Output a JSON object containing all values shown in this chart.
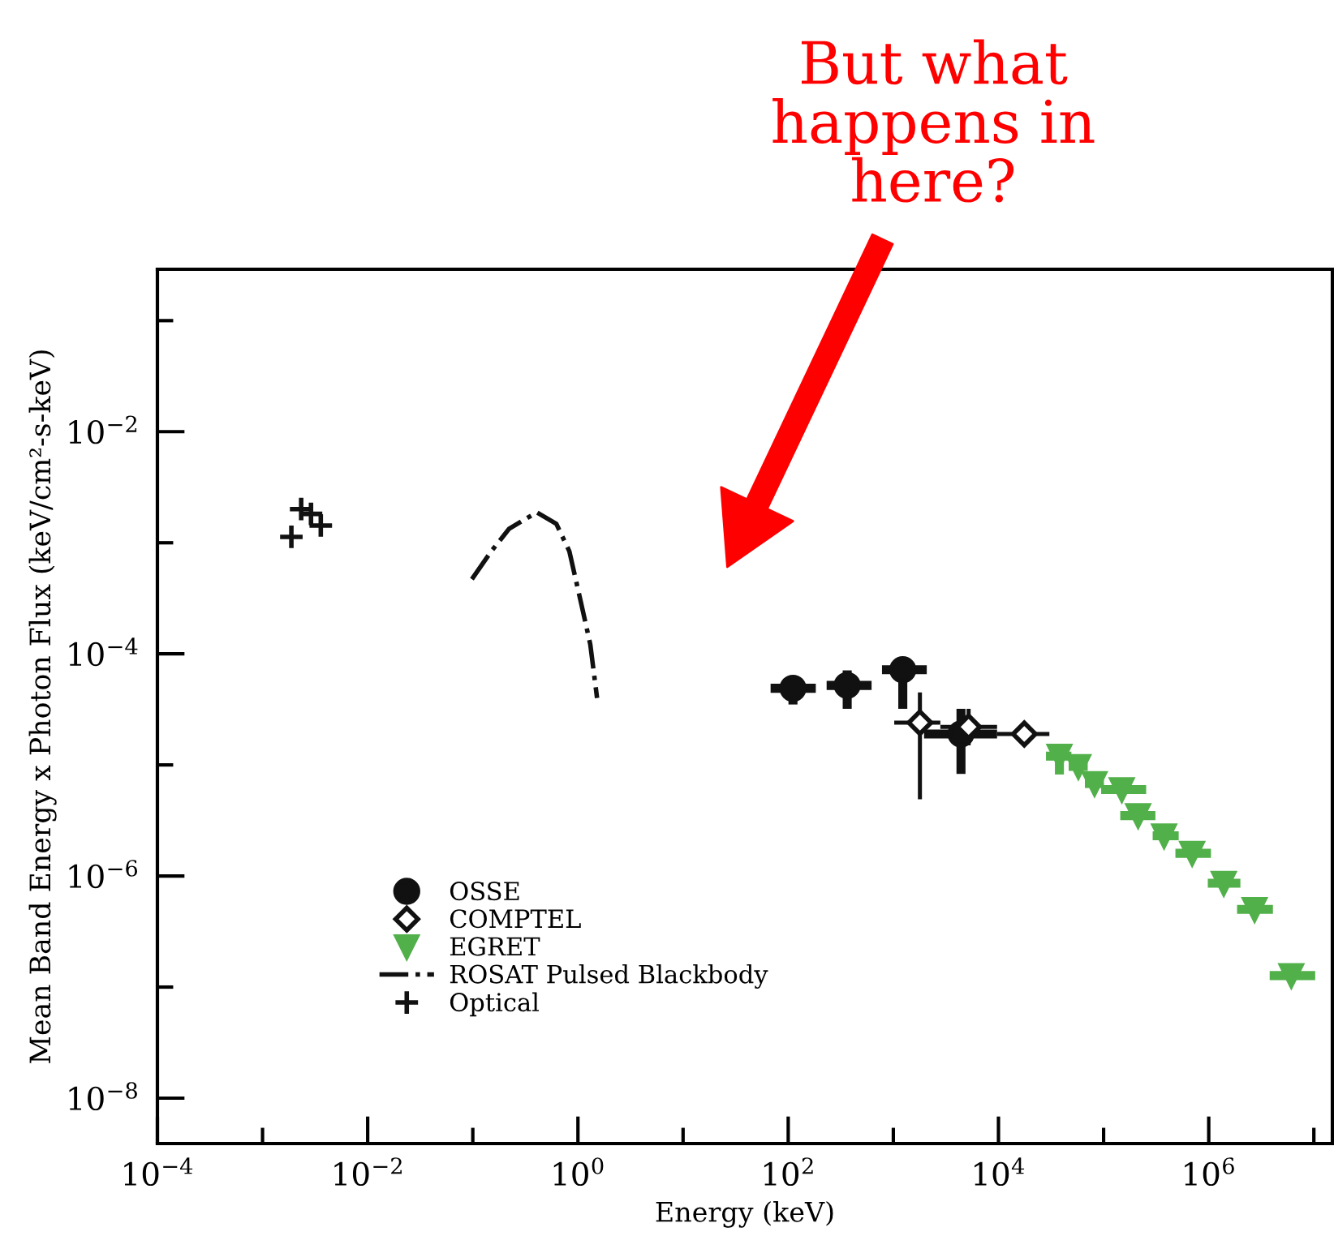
{
  "chart_data": {
    "type": "scatter",
    "xlabel": "Energy (keV)",
    "ylabel": "Mean Band Energy x Photon Flux (keV/cm²-s-keV)",
    "log": "xy",
    "grid": false,
    "legend": "bottom left",
    "xlim": [
      0.0001,
      15000000
    ],
    "ylim": [
      3.9e-09,
      0.29
    ],
    "xticks": [
      {
        "value": 0.0001,
        "label": "10$^{−4}$"
      },
      {
        "value": 0.001,
        "label": null
      },
      {
        "value": 0.01,
        "label": "10$^{−2}$"
      },
      {
        "value": 0.1,
        "label": null
      },
      {
        "value": 1,
        "label": "10$^{0}$"
      },
      {
        "value": 10,
        "label": null
      },
      {
        "value": 100,
        "label": "10$^{2}$"
      },
      {
        "value": 1000,
        "label": null
      },
      {
        "value": 10000,
        "label": "10$^{4}$"
      },
      {
        "value": 100000,
        "label": null
      },
      {
        "value": 1000000,
        "label": "10$^{6}$"
      },
      {
        "value": 10000000,
        "label": null
      }
    ],
    "yticks": [
      {
        "value": 1e-08,
        "label": "10$^{−8}$"
      },
      {
        "value": 1e-07,
        "label": null
      },
      {
        "value": 1e-06,
        "label": "10$^{−6}$"
      },
      {
        "value": 1e-05,
        "label": null
      },
      {
        "value": 0.0001,
        "label": "10$^{−4}$"
      },
      {
        "value": 0.001,
        "label": null
      },
      {
        "value": 0.01,
        "label": "10$^{−2}$"
      },
      {
        "value": 0.1,
        "label": null
      }
    ],
    "annotations": [
      "But what\nhappens in\nhere?"
    ],
    "series": [
      {
        "name": "OSSE",
        "marker": "circle",
        "color": "#111111",
        "x": [
          111,
          364,
          1230,
          4400
        ],
        "values": [
          4.9e-05,
          5.2e-05,
          7.2e-05,
          1.9e-05
        ],
        "errors": [
          [
            3.5e-05,
            6.2e-05
          ],
          [
            3.2e-05,
            7.1e-05
          ],
          [
            3.2e-05,
            7.2e-05
          ],
          [
            8.3e-06,
            3.2e-05
          ]
        ],
        "xerrors": [
          [
            68,
            183
          ],
          [
            232,
            621
          ],
          [
            780,
            2080
          ],
          [
            1960,
            9700
          ]
        ]
      },
      {
        "name": "COMPTEL",
        "marker": "diamond",
        "color": "#111111",
        "x": [
          1790,
          5200,
          17600
        ],
        "values": [
          2.4e-05,
          2.2e-05,
          1.9e-05
        ],
        "errors": [
          [
            4.9e-06,
            4.5e-05
          ],
          [
            1.5e-05,
            3.2e-05
          ],
          [
            1.6e-05,
            2.3e-05
          ]
        ],
        "xerrors": [
          [
            1020,
            2800
          ],
          [
            2800,
            9700
          ],
          [
            9700,
            30500
          ]
        ]
      },
      {
        "name": "EGRET",
        "marker": "triangle",
        "color": "#52b04a",
        "x": [
          38000,
          57500,
          82000,
          149000,
          213000,
          376000,
          695000,
          1390000,
          2730000,
          6100000
        ],
        "values": [
          1.2e-05,
          9.7e-06,
          6.8e-06,
          6e-06,
          3.5e-06,
          2.3e-06,
          1.6e-06,
          8.6e-07,
          5e-07,
          1.27e-07
        ],
        "errors": [
          [
            8.2e-06,
            1.43e-05
          ],
          null,
          null,
          null,
          null,
          null,
          null,
          null,
          null,
          null
        ],
        "xerrors": [
          [
            28300,
            49400
          ],
          [
            46500,
            70600
          ],
          [
            66400,
            100700
          ],
          [
            94800,
            254000
          ],
          [
            144000,
            311000
          ],
          [
            293000,
            518000
          ],
          [
            482000,
            1050000
          ],
          [
            980000,
            2000000
          ],
          [
            1860000,
            4080000
          ],
          [
            3800000,
            10300000
          ]
        ]
      },
      {
        "name": "ROSAT Pulsed Blackbody",
        "type": "line",
        "line_style": "dashdot",
        "color": "#111111",
        "x": [
          0.098,
          0.15,
          0.222,
          0.406,
          0.623,
          0.828,
          1.06,
          1.31,
          1.52
        ],
        "values": [
          0.00047,
          0.00084,
          0.00134,
          0.00188,
          0.00148,
          0.00084,
          0.0003,
          0.000122,
          4e-05
        ]
      },
      {
        "name": "Optical",
        "marker": "cross",
        "color": "#111111",
        "x": [
          0.00188,
          0.00233,
          0.00289,
          0.00358
        ],
        "values": [
          0.00113,
          0.00201,
          0.00182,
          0.00143
        ]
      }
    ]
  }
}
